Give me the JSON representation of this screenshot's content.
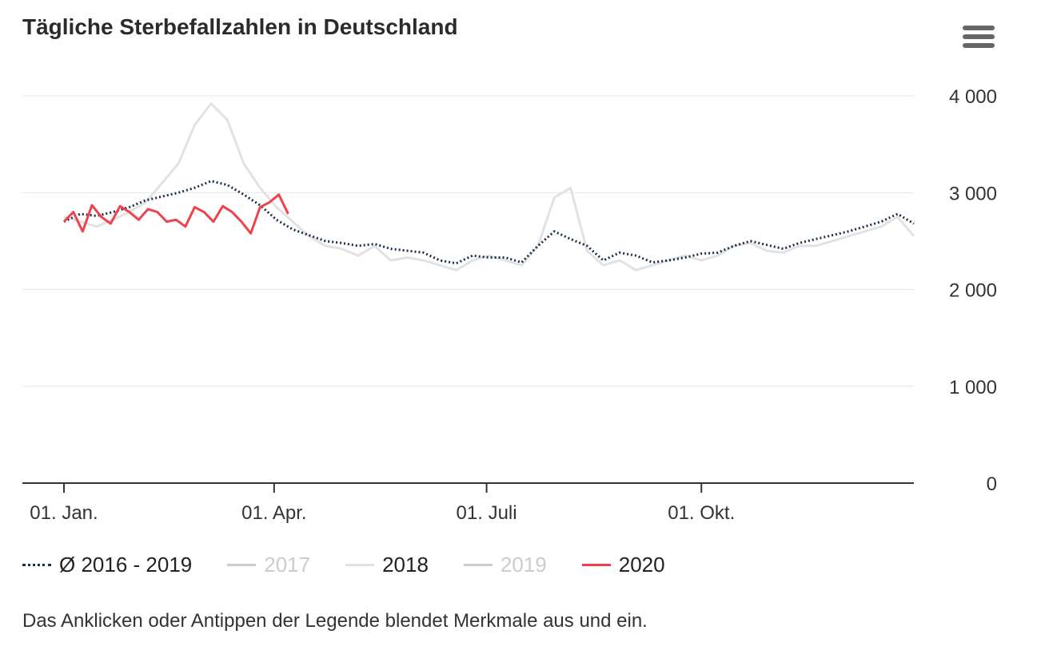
{
  "title": "Tägliche Sterbefallzahlen in Deutschland",
  "menu_icon": "hamburger-menu-icon",
  "note": "Das Anklicken oder Antippen der Legende blendet Merkmale aus und ein.",
  "chart_data": {
    "type": "line",
    "title": "Tägliche Sterbefallzahlen in Deutschland",
    "x_unit": "day of year",
    "x_ticks": [
      {
        "day": 0,
        "label": "01. Jan."
      },
      {
        "day": 90,
        "label": "01. Apr."
      },
      {
        "day": 181,
        "label": "01. Juli"
      },
      {
        "day": 273,
        "label": "01. Okt."
      }
    ],
    "xlim": [
      0,
      364
    ],
    "ylim": [
      0,
      4000
    ],
    "y_ticks": [
      {
        "value": 0,
        "label": "0"
      },
      {
        "value": 1000,
        "label": "1 000"
      },
      {
        "value": 2000,
        "label": "2 000"
      },
      {
        "value": 3000,
        "label": "3 000"
      },
      {
        "value": 4000,
        "label": "4 000"
      }
    ],
    "y_axis_side": "right",
    "grid": true,
    "legend_placement": "bottom",
    "series": [
      {
        "name": "Ø 2016 - 2019",
        "color": "#1b2f4b",
        "style": "dotted",
        "visible": true,
        "days": [
          0,
          7,
          14,
          21,
          28,
          35,
          42,
          49,
          56,
          63,
          70,
          77,
          84,
          91,
          98,
          105,
          112,
          119,
          126,
          133,
          140,
          147,
          154,
          161,
          168,
          175,
          182,
          189,
          196,
          203,
          210,
          217,
          224,
          231,
          238,
          245,
          252,
          259,
          266,
          273,
          280,
          287,
          294,
          301,
          308,
          315,
          322,
          329,
          336,
          343,
          350,
          357,
          364
        ],
        "values": [
          2700,
          2780,
          2760,
          2800,
          2850,
          2920,
          2960,
          3000,
          3050,
          3120,
          3080,
          2980,
          2870,
          2720,
          2620,
          2560,
          2500,
          2480,
          2450,
          2470,
          2420,
          2400,
          2380,
          2300,
          2270,
          2350,
          2330,
          2330,
          2280,
          2450,
          2600,
          2520,
          2450,
          2300,
          2380,
          2350,
          2280,
          2300,
          2330,
          2370,
          2380,
          2450,
          2500,
          2460,
          2420,
          2480,
          2520,
          2560,
          2600,
          2650,
          2700,
          2780,
          2680
        ]
      },
      {
        "name": "2017",
        "color": "#d0d0d0",
        "style": "solid",
        "visible": false
      },
      {
        "name": "2018",
        "color": "#e2e2e2",
        "style": "solid",
        "visible": true,
        "days": [
          0,
          7,
          14,
          21,
          28,
          35,
          42,
          49,
          56,
          63,
          70,
          77,
          84,
          91,
          98,
          105,
          112,
          119,
          126,
          133,
          140,
          147,
          154,
          161,
          168,
          175,
          182,
          189,
          196,
          203,
          210,
          217,
          224,
          231,
          238,
          245,
          252,
          259,
          266,
          273,
          280,
          287,
          294,
          301,
          308,
          315,
          322,
          329,
          336,
          343,
          350,
          357,
          364
        ],
        "values": [
          2750,
          2700,
          2650,
          2720,
          2800,
          2900,
          3100,
          3300,
          3700,
          3920,
          3750,
          3300,
          3050,
          2850,
          2700,
          2550,
          2450,
          2420,
          2350,
          2450,
          2300,
          2330,
          2300,
          2250,
          2200,
          2300,
          2350,
          2300,
          2250,
          2450,
          2950,
          3050,
          2400,
          2250,
          2300,
          2200,
          2250,
          2300,
          2350,
          2300,
          2350,
          2450,
          2480,
          2400,
          2380,
          2450,
          2450,
          2500,
          2550,
          2600,
          2650,
          2750,
          2550
        ]
      },
      {
        "name": "2019",
        "color": "#d0d0d0",
        "style": "solid",
        "visible": false
      },
      {
        "name": "2020",
        "color": "#f0424c",
        "style": "solid",
        "visible": true,
        "days": [
          0,
          4,
          8,
          12,
          16,
          20,
          24,
          28,
          32,
          36,
          40,
          44,
          48,
          52,
          56,
          60,
          64,
          68,
          72,
          76,
          80,
          84,
          88,
          92,
          96
        ],
        "values": [
          2700,
          2800,
          2600,
          2870,
          2750,
          2680,
          2860,
          2800,
          2720,
          2830,
          2800,
          2700,
          2720,
          2650,
          2850,
          2800,
          2700,
          2860,
          2800,
          2700,
          2580,
          2850,
          2900,
          2980,
          2780
        ]
      }
    ]
  }
}
